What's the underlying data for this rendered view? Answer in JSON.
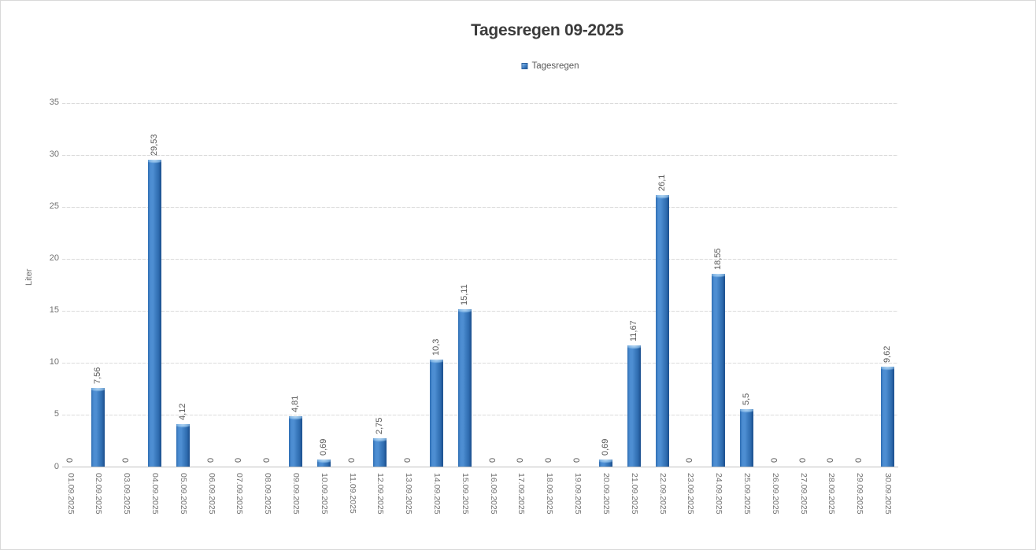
{
  "chart_data": {
    "type": "bar",
    "title": "Tagesregen 09-2025",
    "legend": [
      "Tagesregen"
    ],
    "legend_position": "top",
    "xlabel": "",
    "ylabel": "Liter",
    "ylim": [
      0,
      35
    ],
    "yticks": [
      0,
      5,
      10,
      15,
      20,
      25,
      30,
      35
    ],
    "grid": true,
    "categories": [
      "01.09.2025",
      "02.09.2025",
      "03.09.2025",
      "04.09.2025",
      "05.09.2025",
      "06.09.2025",
      "07.09.2025",
      "08.09.2025",
      "09.09.2025",
      "10.09.2025",
      "11.09.2025",
      "12.09.2025",
      "13.09.2025",
      "14.09.2025",
      "15.09.2025",
      "16.09.2025",
      "17.09.2025",
      "18.09.2025",
      "19.09.2025",
      "20.09.2025",
      "21.09.2025",
      "22.09.2025",
      "23.09.2025",
      "24.09.2025",
      "25.09.2025",
      "26.09.2025",
      "27.09.2025",
      "28.09.2025",
      "29.09.2025",
      "30.09.2025"
    ],
    "series": [
      {
        "name": "Tagesregen",
        "values": [
          0,
          7.56,
          0,
          29.53,
          4.12,
          0,
          0,
          0,
          4.81,
          0.69,
          0,
          2.75,
          0,
          10.3,
          15.11,
          0,
          0,
          0,
          0,
          0.69,
          11.67,
          26.1,
          0,
          18.55,
          5.5,
          0,
          0,
          0,
          0,
          9.62
        ],
        "value_labels": [
          "0",
          "7,56",
          "0",
          "29,53",
          "4,12",
          "0",
          "0",
          "0",
          "4,81",
          "0,69",
          "0",
          "2,75",
          "0",
          "10,3",
          "15,11",
          "0",
          "0",
          "0",
          "0",
          "0,69",
          "11,67",
          "26,1",
          "0",
          "18,55",
          "5,5",
          "0",
          "0",
          "0",
          "0",
          "9,62"
        ]
      }
    ]
  },
  "style": {
    "bar_color": "#3D7EC6",
    "grid_color": "#DBDBDB",
    "axis_color": "#C0C0C0",
    "tick_text_color": "#707070",
    "data_label_color": "#595959",
    "title_color": "#3B3B3B"
  }
}
